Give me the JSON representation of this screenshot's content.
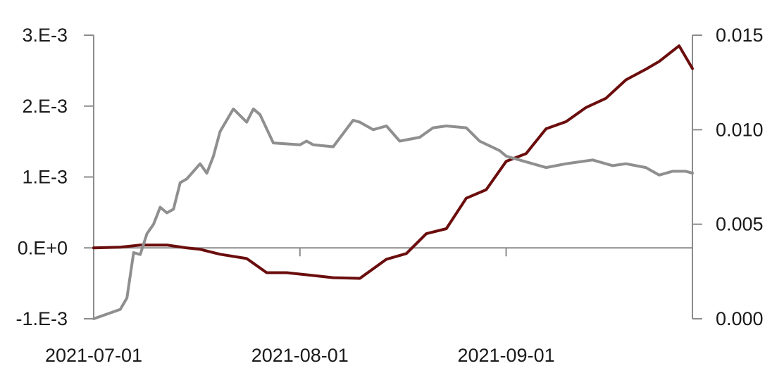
{
  "chart_data": {
    "type": "line",
    "title": "",
    "xlabel": "",
    "ylabel": "",
    "x_ticks": [
      "2021-07-01",
      "2021-08-01",
      "2021-09-01"
    ],
    "y_left": {
      "range": [
        -0.001,
        0.003
      ],
      "ticks": [
        "-1.E-3",
        "0.E+0",
        "1.E-3",
        "2.E-3",
        "3.E-3"
      ],
      "tick_values": [
        -0.001,
        0,
        0.001,
        0.002,
        0.003
      ]
    },
    "y_right": {
      "range": [
        0.0,
        0.015
      ],
      "ticks": [
        "0.000",
        "0.005",
        "0.010",
        "0.015"
      ],
      "tick_values": [
        0,
        0.005,
        0.01,
        0.015
      ]
    },
    "grid": false,
    "legend": "none",
    "series": [
      {
        "axis": "left",
        "color": "#6b0d0d",
        "x": [
          "2021-07-01",
          "2021-07-05",
          "2021-07-08",
          "2021-07-12",
          "2021-07-15",
          "2021-07-17",
          "2021-07-20",
          "2021-07-24",
          "2021-07-27",
          "2021-07-30",
          "2021-08-03",
          "2021-08-06",
          "2021-08-10",
          "2021-08-14",
          "2021-08-17",
          "2021-08-20",
          "2021-08-23",
          "2021-08-26",
          "2021-08-29",
          "2021-09-01",
          "2021-09-04",
          "2021-09-07",
          "2021-09-10",
          "2021-09-13",
          "2021-09-16",
          "2021-09-19",
          "2021-09-22",
          "2021-09-24",
          "2021-09-27",
          "2021-09-29"
        ],
        "values": [
          0.0,
          1e-05,
          4e-05,
          4e-05,
          0.0,
          -2e-05,
          -9e-05,
          -0.00015,
          -0.00035,
          -0.00035,
          -0.00039,
          -0.00042,
          -0.00043,
          -0.00016,
          -8e-05,
          0.0002,
          0.00027,
          0.0007,
          0.00082,
          0.00122,
          0.00133,
          0.00168,
          0.00178,
          0.00198,
          0.00211,
          0.00237,
          0.00252,
          0.00263,
          0.00285,
          0.00253
        ]
      },
      {
        "axis": "right",
        "color": "#8f8f8f",
        "x": [
          "2021-07-01",
          "2021-07-05",
          "2021-07-06",
          "2021-07-07",
          "2021-07-08",
          "2021-07-09",
          "2021-07-10",
          "2021-07-11",
          "2021-07-12",
          "2021-07-13",
          "2021-07-14",
          "2021-07-15",
          "2021-07-17",
          "2021-07-18",
          "2021-07-19",
          "2021-07-20",
          "2021-07-22",
          "2021-07-24",
          "2021-07-25",
          "2021-07-26",
          "2021-07-28",
          "2021-08-01",
          "2021-08-02",
          "2021-08-03",
          "2021-08-06",
          "2021-08-09",
          "2021-08-10",
          "2021-08-12",
          "2021-08-14",
          "2021-08-16",
          "2021-08-19",
          "2021-08-21",
          "2021-08-23",
          "2021-08-26",
          "2021-08-28",
          "2021-08-31",
          "2021-09-01",
          "2021-09-03",
          "2021-09-05",
          "2021-09-07",
          "2021-09-10",
          "2021-09-12",
          "2021-09-14",
          "2021-09-17",
          "2021-09-19",
          "2021-09-22",
          "2021-09-24",
          "2021-09-26",
          "2021-09-28",
          "2021-09-29"
        ],
        "values": [
          0.0,
          0.0005,
          0.0011,
          0.0035,
          0.0034,
          0.0045,
          0.005,
          0.0059,
          0.0056,
          0.0058,
          0.0072,
          0.0074,
          0.0082,
          0.0077,
          0.0086,
          0.0099,
          0.0111,
          0.0104,
          0.0111,
          0.0108,
          0.0093,
          0.0092,
          0.0094,
          0.0092,
          0.0091,
          0.0105,
          0.0104,
          0.01,
          0.0102,
          0.0094,
          0.0096,
          0.0101,
          0.0102,
          0.0101,
          0.0094,
          0.0089,
          0.0086,
          0.0084,
          0.0082,
          0.008,
          0.0082,
          0.0083,
          0.0084,
          0.0081,
          0.0082,
          0.008,
          0.0076,
          0.0078,
          0.0078,
          0.0077
        ]
      }
    ]
  }
}
